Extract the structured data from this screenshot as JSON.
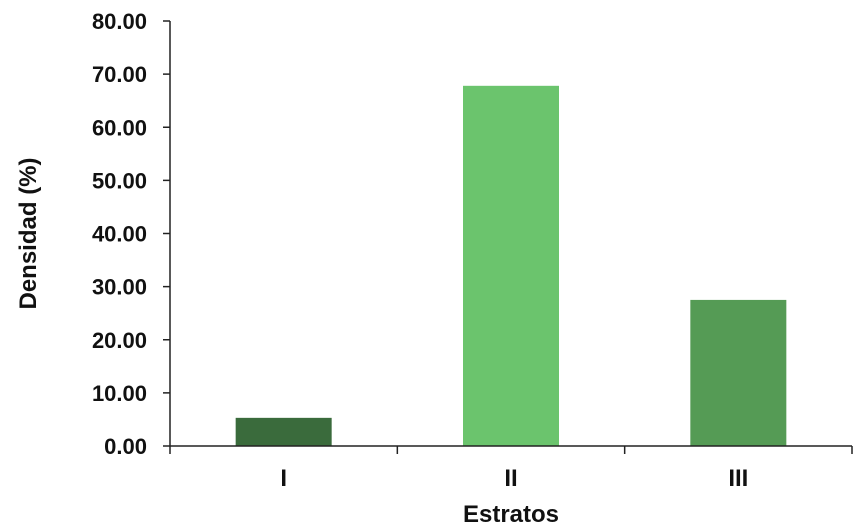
{
  "chart_data": {
    "type": "bar",
    "categories": [
      "I",
      "II",
      "III"
    ],
    "values": [
      5.3,
      67.8,
      27.5
    ],
    "bar_colors": [
      "#3a6b3c",
      "#6bc46d",
      "#559b55"
    ],
    "xlabel": "Estratos",
    "ylabel": "Densidad (%)",
    "ylim": [
      0,
      80
    ],
    "yticks": [
      "0.00",
      "10.00",
      "20.00",
      "30.00",
      "40.00",
      "50.00",
      "60.00",
      "70.00",
      "80.00"
    ],
    "grid": false,
    "legend": "none"
  }
}
